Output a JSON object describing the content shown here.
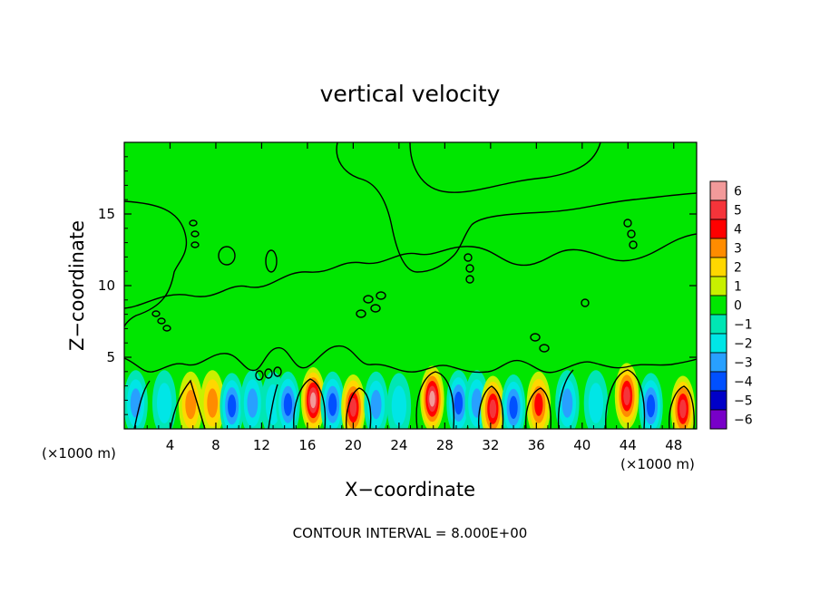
{
  "chart_data": {
    "type": "heatmap",
    "title": "vertical velocity",
    "xlabel": "X−coordinate",
    "ylabel": "Z−coordinate",
    "x_unit_left": "(×1000 m)",
    "x_unit_right": "(×1000 m)",
    "footer": "CONTOUR INTERVAL = 8.000E+00",
    "xlim": [
      0,
      50
    ],
    "ylim": [
      0,
      20
    ],
    "x_ticks": [
      {
        "value": 4,
        "label": "4"
      },
      {
        "value": 8,
        "label": "8"
      },
      {
        "value": 12,
        "label": "12"
      },
      {
        "value": 16,
        "label": "16"
      },
      {
        "value": 20,
        "label": "20"
      },
      {
        "value": 24,
        "label": "24"
      },
      {
        "value": 28,
        "label": "28"
      },
      {
        "value": 32,
        "label": "32"
      },
      {
        "value": 36,
        "label": "36"
      },
      {
        "value": 40,
        "label": "40"
      },
      {
        "value": 44,
        "label": "44"
      },
      {
        "value": 48,
        "label": "48"
      }
    ],
    "y_ticks": [
      {
        "value": 5,
        "label": "5"
      },
      {
        "value": 10,
        "label": "10"
      },
      {
        "value": 15,
        "label": "15"
      }
    ],
    "background_value": 0,
    "colorbar": {
      "levels": [
        {
          "value": 6,
          "label": "6",
          "color": "#f29a9a"
        },
        {
          "value": 5,
          "label": "5",
          "color": "#f5343a"
        },
        {
          "value": 4,
          "label": "4",
          "color": "#ff0000"
        },
        {
          "value": 3,
          "label": "3",
          "color": "#ff8c00"
        },
        {
          "value": 2,
          "label": "2",
          "color": "#ffd700"
        },
        {
          "value": 1,
          "label": "1",
          "color": "#c8f000"
        },
        {
          "value": 0,
          "label": "0",
          "color": "#00e600"
        },
        {
          "value": -1,
          "label": "−1",
          "color": "#00e6b4"
        },
        {
          "value": -2,
          "label": "−2",
          "color": "#00e6e6"
        },
        {
          "value": -3,
          "label": "−3",
          "color": "#28a0ff"
        },
        {
          "value": -4,
          "label": "−4",
          "color": "#0050ff"
        },
        {
          "value": -5,
          "label": "−5",
          "color": "#0000c8"
        },
        {
          "value": -6,
          "label": "−6",
          "color": "#7800c8"
        }
      ]
    },
    "cells": [
      {
        "x": 1.0,
        "z": 1.8,
        "value": -3
      },
      {
        "x": 3.5,
        "z": 1.8,
        "value": -2
      },
      {
        "x": 5.8,
        "z": 1.7,
        "value": 3
      },
      {
        "x": 7.7,
        "z": 1.8,
        "value": 3
      },
      {
        "x": 9.4,
        "z": 1.6,
        "value": -4
      },
      {
        "x": 11.2,
        "z": 1.8,
        "value": -3
      },
      {
        "x": 13.0,
        "z": 1.7,
        "value": -2
      },
      {
        "x": 14.3,
        "z": 1.7,
        "value": -4
      },
      {
        "x": 16.5,
        "z": 2.0,
        "value": 6
      },
      {
        "x": 18.2,
        "z": 1.7,
        "value": -4
      },
      {
        "x": 20.0,
        "z": 1.5,
        "value": 5
      },
      {
        "x": 22.0,
        "z": 1.7,
        "value": -3
      },
      {
        "x": 24.0,
        "z": 1.6,
        "value": -2
      },
      {
        "x": 26.9,
        "z": 2.1,
        "value": 6
      },
      {
        "x": 29.2,
        "z": 1.8,
        "value": -4
      },
      {
        "x": 30.8,
        "z": 1.8,
        "value": -3
      },
      {
        "x": 32.2,
        "z": 1.4,
        "value": 5
      },
      {
        "x": 34.0,
        "z": 1.5,
        "value": -4
      },
      {
        "x": 36.2,
        "z": 1.7,
        "value": 4
      },
      {
        "x": 38.7,
        "z": 1.8,
        "value": -3
      },
      {
        "x": 41.2,
        "z": 1.8,
        "value": -2
      },
      {
        "x": 43.9,
        "z": 2.3,
        "value": 5
      },
      {
        "x": 46.0,
        "z": 1.6,
        "value": -4
      },
      {
        "x": 48.8,
        "z": 1.4,
        "value": 5
      }
    ]
  }
}
